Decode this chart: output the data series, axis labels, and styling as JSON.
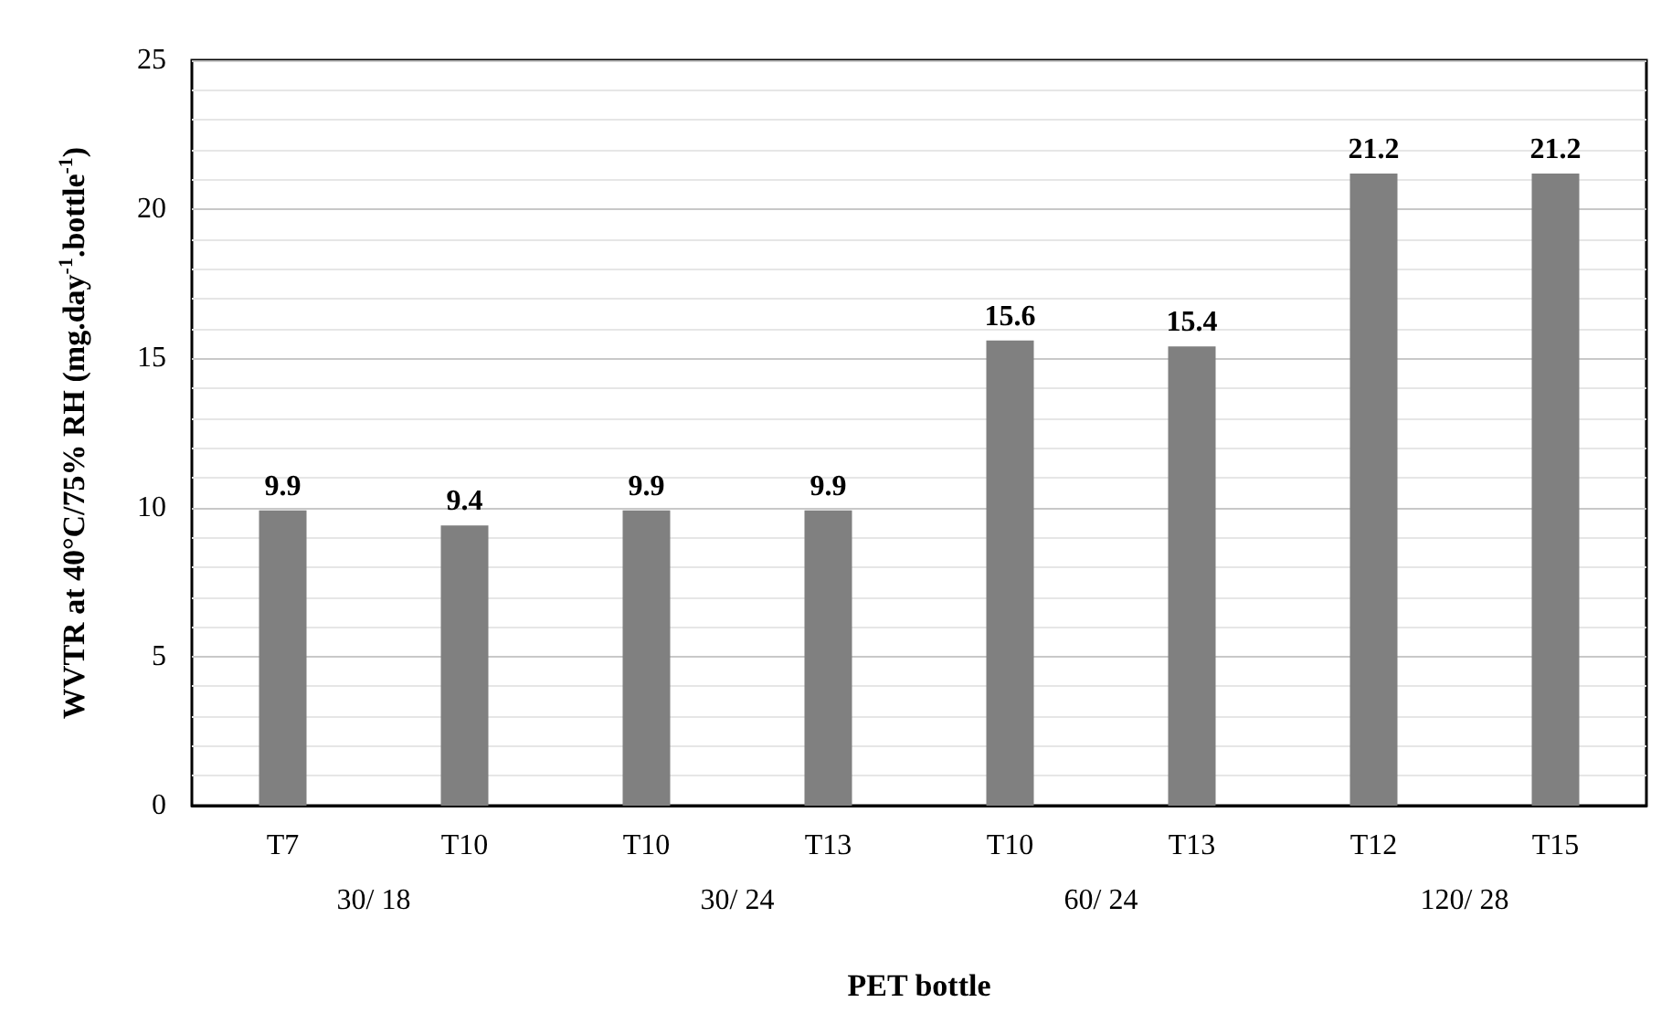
{
  "chart_data": {
    "type": "bar",
    "categories": [
      "T7",
      "T10",
      "T10",
      "T13",
      "T10",
      "T13",
      "T12",
      "T15"
    ],
    "values": [
      9.9,
      9.4,
      9.9,
      9.9,
      15.6,
      15.4,
      21.2,
      21.2
    ],
    "color": "#808080",
    "data_labels": true,
    "xlabel": "PET bottle",
    "ylabel": "WVTR at 40°C/75% RH (mg.day$^{-1}$.bottle$^{-1}$)",
    "annotations": [
      "30/ 18",
      "30/ 24",
      "60/ 24",
      "120/ 28"
    ],
    "ylim": [
      0,
      25
    ],
    "yticks": [
      0,
      5,
      10,
      15,
      20,
      25
    ],
    "grid": "y"
  }
}
